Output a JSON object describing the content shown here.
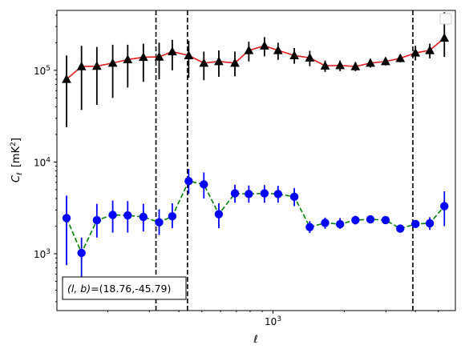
{
  "chart_data": {
    "type": "line",
    "xlabel": "ℓ",
    "ylabel": "C",
    "ylabel_sub": "ℓ",
    "ylabel_unit": "[mK",
    "ylabel_unit_exp": "2",
    "ylabel_unit_close": "]",
    "x_scale": "log",
    "y_scale": "log",
    "xlim": [
      122,
      5900
    ],
    "ylim": [
      240,
      450000
    ],
    "x_tick_labels": [
      {
        "value": 1000,
        "base": "10",
        "exp": "3"
      }
    ],
    "y_tick_labels": [
      {
        "value": 1000,
        "base": "10",
        "exp": "3"
      },
      {
        "value": 10000,
        "base": "10",
        "exp": "4"
      },
      {
        "value": 100000,
        "base": "10",
        "exp": "5"
      }
    ],
    "legend": {
      "placement": "upper right",
      "entries": []
    },
    "vlines": [
      320,
      435,
      3900
    ],
    "annotation": {
      "text": "(l, b)=(18.76,-45.79)",
      "italic_part": "(l, b)",
      "rest": "=(18.76,-45.79)",
      "placement": "lower left"
    },
    "series": [
      {
        "marker": "triangle",
        "color": "#000000",
        "line_color": "#e31a1c",
        "line_style": "solid",
        "x": [
          134,
          155,
          180,
          210,
          243,
          283,
          330,
          375,
          440,
          510,
          590,
          690,
          790,
          920,
          1050,
          1230,
          1430,
          1660,
          1920,
          2230,
          2580,
          2990,
          3450,
          4000,
          4600,
          5300
        ],
        "y": [
          80000,
          110000,
          111000,
          120000,
          131000,
          139000,
          140000,
          160000,
          145000,
          120000,
          125000,
          120000,
          165000,
          185000,
          165000,
          145000,
          137000,
          112000,
          113000,
          110000,
          120000,
          125000,
          135000,
          155000,
          165000,
          225000
        ],
        "err_low": [
          24000,
          37000,
          42000,
          50000,
          65000,
          75000,
          80000,
          100000,
          83000,
          78000,
          85000,
          86000,
          125000,
          142000,
          130000,
          118000,
          111000,
          96000,
          98000,
          98000,
          107000,
          113000,
          122000,
          128000,
          135000,
          140000
        ],
        "err_high": [
          145000,
          185000,
          180000,
          190000,
          190000,
          195000,
          200000,
          215000,
          210000,
          160000,
          165000,
          160000,
          205000,
          230000,
          200000,
          175000,
          163000,
          128000,
          128000,
          123000,
          133000,
          138000,
          148000,
          185000,
          195000,
          430000
        ]
      },
      {
        "marker": "circle",
        "color": "#0000ff",
        "line_color": "#008000",
        "line_style": "dashed",
        "x": [
          134,
          155,
          180,
          210,
          243,
          283,
          330,
          375,
          440,
          510,
          590,
          690,
          790,
          920,
          1050,
          1230,
          1430,
          1660,
          1920,
          2230,
          2580,
          2990,
          3450,
          4000,
          4600,
          5300
        ],
        "y": [
          2450,
          1020,
          2320,
          2650,
          2620,
          2520,
          2200,
          2560,
          6200,
          5700,
          2700,
          4550,
          4480,
          4550,
          4480,
          4180,
          1950,
          2170,
          2100,
          2330,
          2370,
          2330,
          1880,
          2110,
          2150,
          3300
        ],
        "err_low": [
          750,
          500,
          1500,
          1700,
          1700,
          1750,
          1600,
          1900,
          4500,
          4000,
          1900,
          3600,
          3600,
          3600,
          3600,
          3300,
          1680,
          1870,
          1870,
          2080,
          2150,
          2120,
          1700,
          1920,
          1820,
          2000
        ],
        "err_high": [
          4300,
          1500,
          3500,
          3800,
          3750,
          3500,
          3050,
          3550,
          8400,
          7700,
          3550,
          5650,
          5550,
          5600,
          5500,
          5200,
          2270,
          2480,
          2450,
          2600,
          2600,
          2560,
          2060,
          2300,
          2500,
          4800
        ]
      }
    ]
  }
}
